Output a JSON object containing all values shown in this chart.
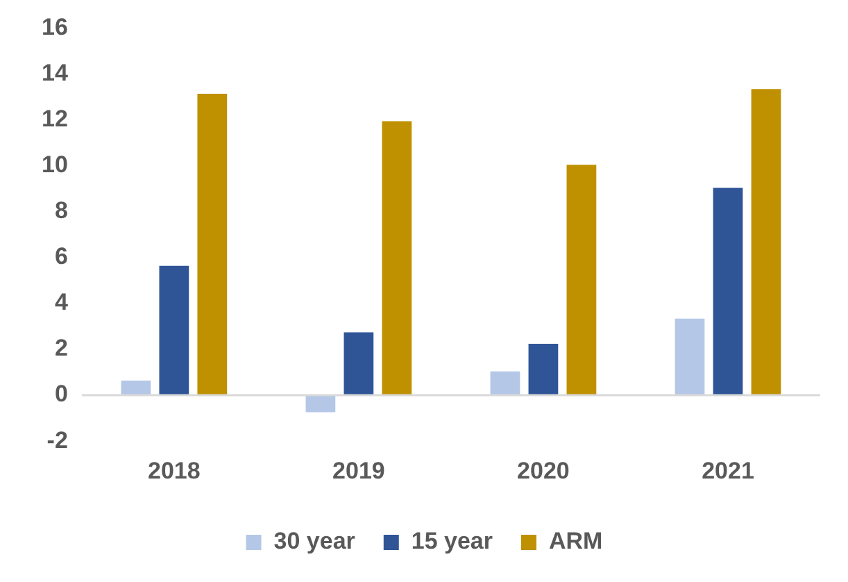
{
  "chart_data": {
    "type": "bar",
    "categories": [
      "2018",
      "2019",
      "2020",
      "2021"
    ],
    "series": [
      {
        "name": "30 year",
        "color": "#b4c7e7",
        "values": [
          0.7,
          -0.8,
          1.1,
          3.4
        ]
      },
      {
        "name": "15 year",
        "color": "#2f5597",
        "values": [
          5.7,
          2.8,
          2.3,
          9.1
        ]
      },
      {
        "name": "ARM",
        "color": "#bf9000",
        "values": [
          13.2,
          12.0,
          10.1,
          13.4
        ]
      }
    ],
    "ylim": [
      -2,
      16
    ],
    "yticks": [
      -2,
      0,
      2,
      4,
      6,
      8,
      10,
      12,
      14,
      16
    ],
    "ref_lines": [
      {
        "axis": "y",
        "value": 0,
        "color": "#d9d9d9"
      }
    ],
    "grid": false,
    "legend": "bottom"
  }
}
